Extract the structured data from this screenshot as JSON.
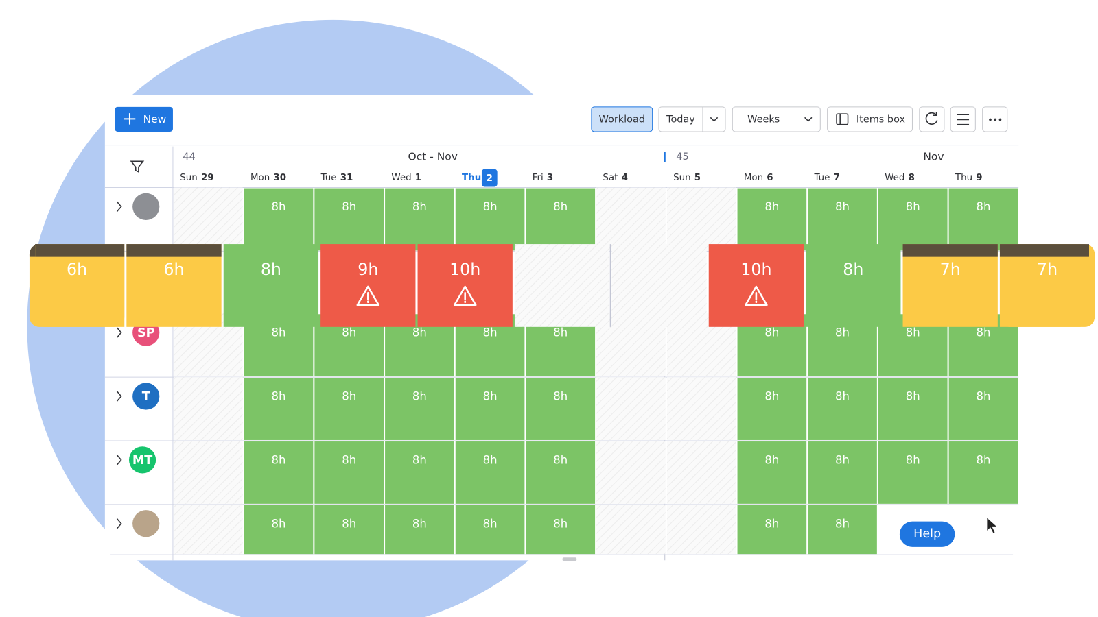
{
  "toolbar": {
    "new": "New",
    "workload": "Workload",
    "today": "Today",
    "weeks": "Weeks",
    "items_box": "Items box"
  },
  "weeks": [
    {
      "number": "44",
      "months": "Oct  -  Nov"
    },
    {
      "number": "45",
      "months": "Nov"
    }
  ],
  "days": [
    {
      "name": "Sun",
      "date": "29"
    },
    {
      "name": "Mon",
      "date": "30"
    },
    {
      "name": "Tue",
      "date": "31"
    },
    {
      "name": "Wed",
      "date": "1"
    },
    {
      "name": "Thu",
      "date": "2",
      "today": true
    },
    {
      "name": "Fri",
      "date": "3"
    },
    {
      "name": "Sat",
      "date": "4"
    },
    {
      "name": "Sun",
      "date": "5"
    },
    {
      "name": "Mon",
      "date": "6"
    },
    {
      "name": "Tue",
      "date": "7"
    },
    {
      "name": "Wed",
      "date": "8"
    },
    {
      "name": "Thu",
      "date": "9"
    }
  ],
  "rows": [
    {
      "initials": null,
      "avatar_color": "#8d8f94",
      "top": 265,
      "cells": [
        null,
        "8h",
        "8h",
        "8h",
        "8h",
        "8h",
        null,
        null,
        "8h",
        "8h",
        "8h",
        "8h"
      ]
    },
    {
      "initials": "SP",
      "avatar_color": "#e8507a",
      "top": 443,
      "cells": [
        null,
        "8h",
        "8h",
        "8h",
        "8h",
        "8h",
        null,
        null,
        "8h",
        "8h",
        "8h",
        "8h"
      ]
    },
    {
      "initials": "T",
      "avatar_color": "#1f6fc2",
      "top": 533,
      "cells": [
        null,
        "8h",
        "8h",
        "8h",
        "8h",
        "8h",
        null,
        null,
        "8h",
        "8h",
        "8h",
        "8h"
      ]
    },
    {
      "initials": "MT",
      "avatar_color": "#16c46d",
      "top": 623,
      "cells": [
        null,
        "8h",
        "8h",
        "8h",
        "8h",
        "8h",
        null,
        null,
        "8h",
        "8h",
        "8h",
        "8h"
      ]
    },
    {
      "initials": null,
      "avatar_color": "#b9a48a",
      "top": 713,
      "cells": [
        null,
        "8h",
        "8h",
        "8h",
        "8h",
        "8h",
        null,
        null,
        "8h",
        "8h",
        null,
        null
      ]
    }
  ],
  "highlight": {
    "cells": [
      {
        "label": "6h",
        "color": "#fcca46",
        "warning": false,
        "assigned": true
      },
      {
        "label": "6h",
        "color": "#fcca46",
        "warning": false,
        "assigned": true
      },
      {
        "label": "8h",
        "color": "#7cc466",
        "warning": false
      },
      {
        "label": "9h",
        "color": "#ee5a48",
        "warning": true
      },
      {
        "label": "10h",
        "color": "#ee5a48",
        "warning": true
      },
      null,
      null,
      {
        "label": "10h",
        "color": "#ee5a48",
        "warning": true
      },
      {
        "label": "8h",
        "color": "#7cc466",
        "warning": false
      },
      {
        "label": "7h",
        "color": "#fcca46",
        "warning": false,
        "assigned": true
      },
      {
        "label": "7h",
        "color": "#fcca46",
        "warning": false,
        "assigned": true
      }
    ]
  },
  "help": "Help"
}
